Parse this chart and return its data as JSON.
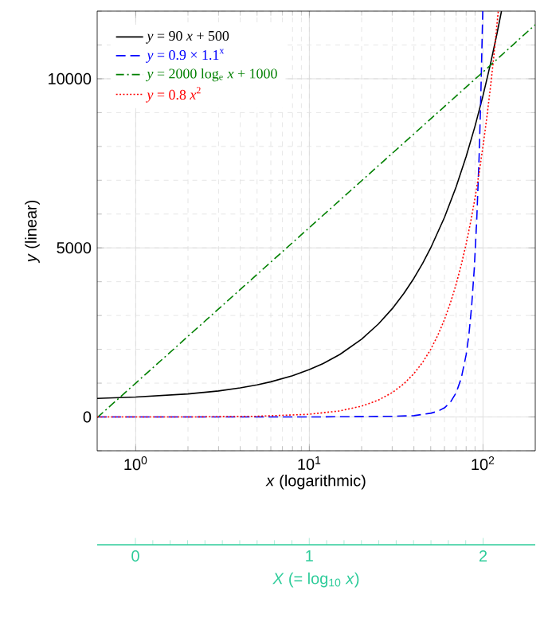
{
  "chart_data": {
    "type": "line",
    "xlabel": "*x* (logarithmic)",
    "ylabel": "*y* (linear)",
    "x2label": "*X* (= log$_{10}$ *x*)",
    "log": "x",
    "xlim": [
      0.6,
      200
    ],
    "ylim": [
      -1000,
      12000
    ],
    "xticks": [
      {
        "value": 1,
        "label": "10$^{0}$"
      },
      {
        "value": 10,
        "label": "10$^{1}$"
      },
      {
        "value": 100,
        "label": "10$^{2}$"
      }
    ],
    "yticks": [
      0,
      5000,
      10000
    ],
    "x2lim": [
      -0.22,
      2.3
    ],
    "x2ticks": [
      0,
      1,
      2
    ],
    "grid": true,
    "legend": "top left",
    "marker": "none",
    "series": [
      {
        "name": "*y* = 90 *x* + 500",
        "color": "#000000",
        "line_style": "solid",
        "x": [
          0.6,
          1,
          2,
          3,
          4,
          5,
          6,
          8,
          10,
          12,
          15,
          20,
          25,
          30,
          35,
          40,
          45,
          50,
          60,
          70,
          80,
          90,
          100,
          110,
          120,
          127.8
        ],
        "values": [
          550,
          590,
          680,
          770,
          860,
          950,
          1040,
          1220,
          1400,
          1580,
          1850,
          2300,
          2750,
          3200,
          3650,
          4100,
          4550,
          5000,
          5900,
          6800,
          7700,
          8600,
          9500,
          10400,
          11300,
          12000
        ]
      },
      {
        "name": "*y* = 0.9 × 1.1$^{x}$",
        "color": "#0000ff",
        "line_style": "dashed",
        "x": [
          0.6,
          10,
          20,
          30,
          40,
          50,
          55,
          60,
          65,
          70,
          75,
          80,
          83,
          86,
          89,
          92,
          95,
          97,
          99.7
        ],
        "values": [
          0,
          0,
          10,
          20,
          40,
          110,
          170,
          270,
          440,
          710,
          1150,
          1840,
          2440,
          3270,
          4350,
          5790,
          7700,
          9320,
          12000
        ]
      },
      {
        "name": "*y* = 2000 log$_{e}$ *x* + 1000",
        "color": "#008000",
        "line_style": "dashdot",
        "x": [
          0.6,
          1,
          10,
          100,
          200
        ],
        "values": [
          -20,
          1000,
          5600,
          10200,
          11600
        ]
      },
      {
        "name": "*y* = 0.8 *x*$^{2}$",
        "color": "#ff0000",
        "line_style": "dotted",
        "x": [
          0.6,
          1,
          2,
          5,
          10,
          15,
          20,
          25,
          30,
          35,
          40,
          45,
          50,
          55,
          60,
          65,
          70,
          75,
          80,
          85,
          90,
          95,
          100,
          105,
          110,
          115,
          122.4
        ],
        "values": [
          0,
          0,
          0,
          20,
          80,
          180,
          320,
          500,
          720,
          980,
          1280,
          1620,
          2000,
          2420,
          2880,
          3380,
          3920,
          4500,
          5120,
          5780,
          6480,
          7220,
          8000,
          8820,
          9680,
          10580,
          11990
        ]
      }
    ]
  }
}
